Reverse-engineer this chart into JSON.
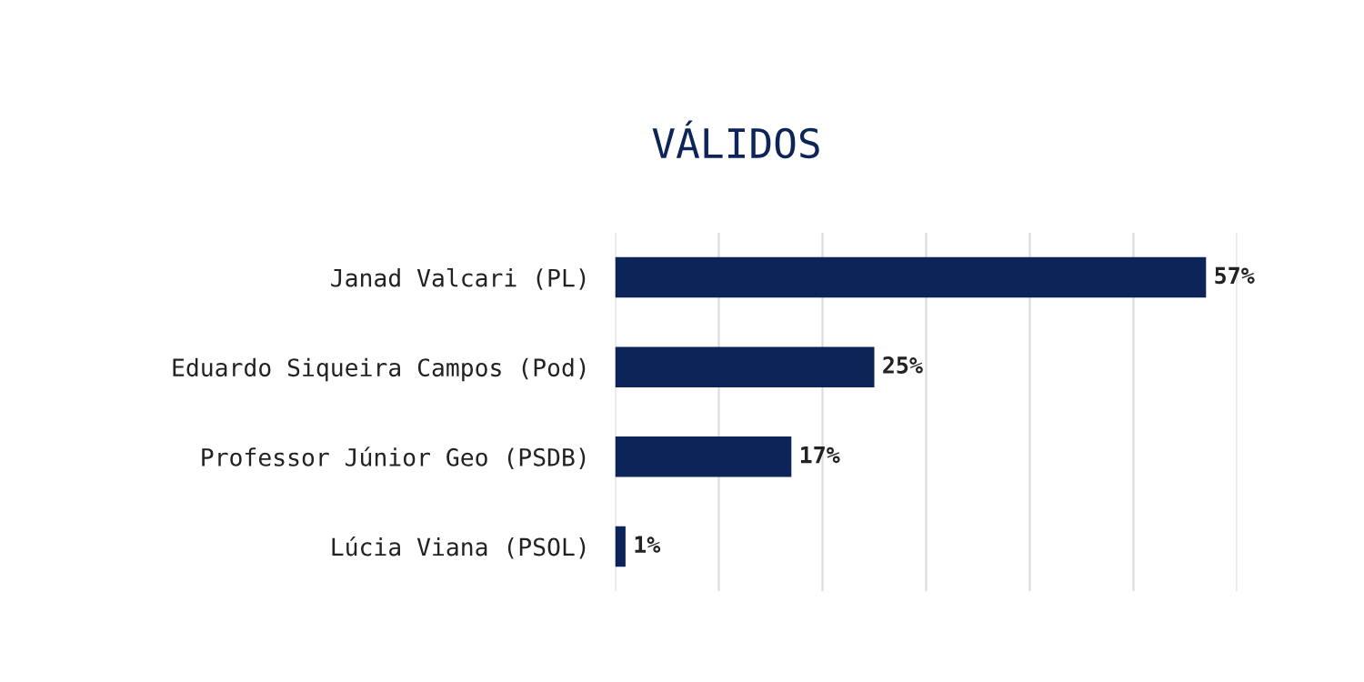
{
  "chart_data": {
    "type": "bar",
    "orientation": "horizontal",
    "title": "VÁLIDOS",
    "categories": [
      "Janad Valcari (PL)",
      "Eduardo Siqueira Campos (Pod)",
      "Professor Júnior Geo (PSDB)",
      "Lúcia Viana (PSOL)"
    ],
    "values": [
      57,
      25,
      17,
      1
    ],
    "value_labels": [
      "57%",
      "25%",
      "17%",
      "1%"
    ],
    "color": "#0d2458",
    "xlim": [
      0,
      60
    ],
    "xticks": [
      {
        "value": 0,
        "label": null
      },
      {
        "value": 10,
        "label": null
      },
      {
        "value": 20,
        "label": null
      },
      {
        "value": 30,
        "label": null
      },
      {
        "value": 40,
        "label": null
      },
      {
        "value": 50,
        "label": null
      },
      {
        "value": 60,
        "label": null
      }
    ],
    "grid": "x",
    "tick_labels": "y"
  }
}
